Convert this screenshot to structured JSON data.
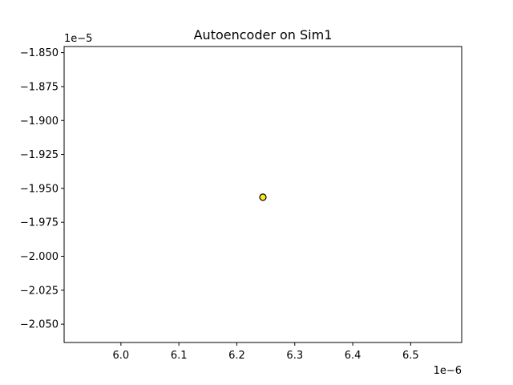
{
  "chart_data": {
    "type": "scatter",
    "title": "Autoencoder on Sim1",
    "xlabel": "",
    "ylabel": "",
    "x_offset_label": "1e−6",
    "y_offset_label": "1e−5",
    "xlim": [
      5.902,
      6.588
    ],
    "ylim": [
      -2.0635,
      -1.8455
    ],
    "x_ticks": [
      6.0,
      6.1,
      6.2,
      6.3,
      6.4,
      6.5
    ],
    "x_tick_labels": [
      "6.0",
      "6.1",
      "6.2",
      "6.3",
      "6.4",
      "6.5"
    ],
    "y_ticks": [
      -1.85,
      -1.875,
      -1.9,
      -1.925,
      -1.95,
      -1.975,
      -2.0,
      -2.025,
      -2.05
    ],
    "y_tick_labels": [
      "−1.850",
      "−1.875",
      "−1.900",
      "−1.925",
      "−1.950",
      "−1.975",
      "−2.000",
      "−2.025",
      "−2.050"
    ],
    "grid": false,
    "legend": "none",
    "points": [
      {
        "x": 6.245,
        "y": -1.9565
      }
    ],
    "colors": {
      "point_fill": "#fde725",
      "point_edge": "#000000",
      "axes": "#000000"
    }
  }
}
